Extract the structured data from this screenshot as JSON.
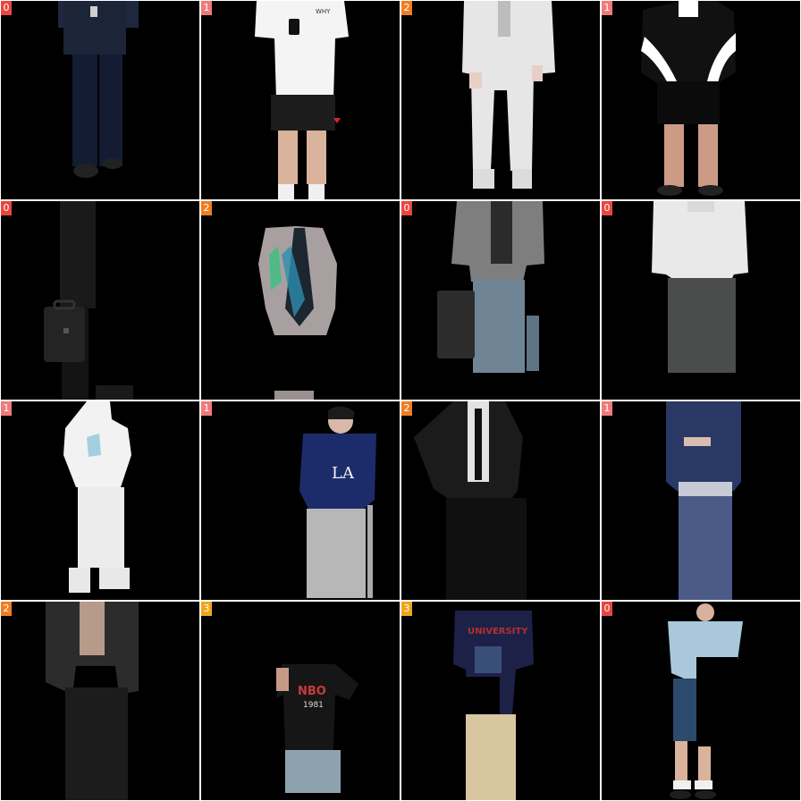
{
  "tiles": [
    {
      "label": "0",
      "badge_color": "#e8463f"
    },
    {
      "label": "1",
      "badge_color": "#f07a7a"
    },
    {
      "label": "2",
      "badge_color": "#f07d22"
    },
    {
      "label": "1",
      "badge_color": "#f07a7a"
    },
    {
      "label": "0",
      "badge_color": "#e8463f"
    },
    {
      "label": "2",
      "badge_color": "#f07d22"
    },
    {
      "label": "0",
      "badge_color": "#e8463f"
    },
    {
      "label": "0",
      "badge_color": "#e8463f"
    },
    {
      "label": "1",
      "badge_color": "#f07a7a"
    },
    {
      "label": "1",
      "badge_color": "#f07a7a"
    },
    {
      "label": "2",
      "badge_color": "#f07d22"
    },
    {
      "label": "1",
      "badge_color": "#f07a7a"
    },
    {
      "label": "2",
      "badge_color": "#f07d22"
    },
    {
      "label": "3",
      "badge_color": "#f0a51e"
    },
    {
      "label": "3",
      "badge_color": "#f0a51e"
    },
    {
      "label": "0",
      "badge_color": "#e8463f"
    }
  ],
  "graphics": {
    "shirt1_text": "WHY",
    "hoodie_text": "LA",
    "tee_text_top": "NBO",
    "tee_text_bottom": "1981",
    "tee2_text": "UNIVERSITY"
  }
}
